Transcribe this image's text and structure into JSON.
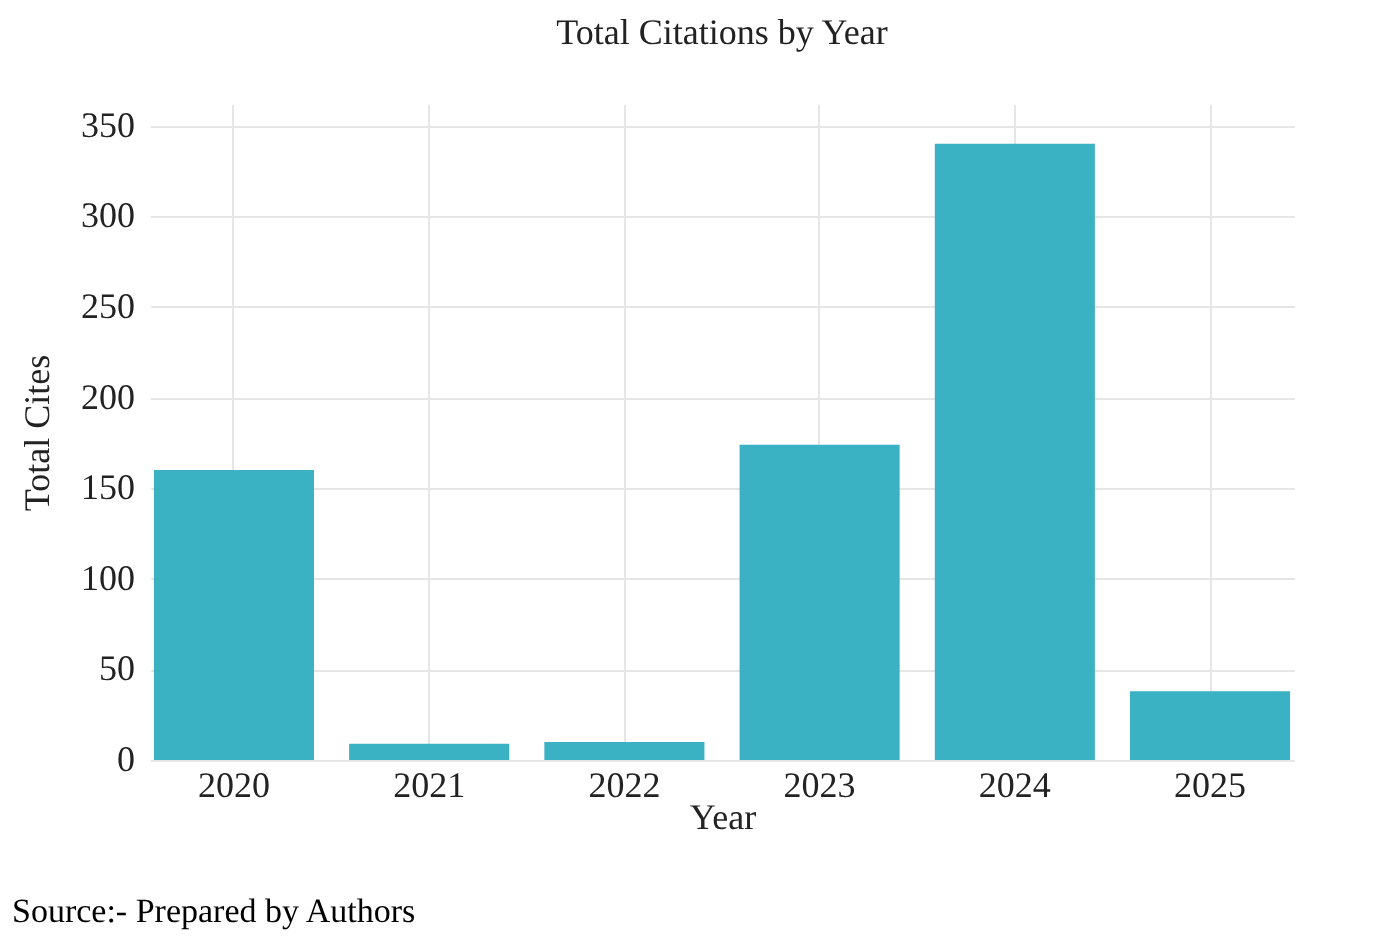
{
  "chart_data": {
    "type": "bar",
    "title": "Total Citations by Year",
    "xlabel": "Year",
    "ylabel": "Total Cites",
    "categories": [
      "2020",
      "2021",
      "2022",
      "2023",
      "2024",
      "2025"
    ],
    "values": [
      160,
      9,
      10,
      174,
      340,
      38
    ],
    "color": "#3bb1c4",
    "ylim": [
      0,
      362
    ],
    "yticks": [
      0,
      50,
      100,
      150,
      200,
      250,
      300,
      350
    ],
    "grid": true,
    "annotations": [
      "Source:- Prepared by Authors"
    ]
  }
}
